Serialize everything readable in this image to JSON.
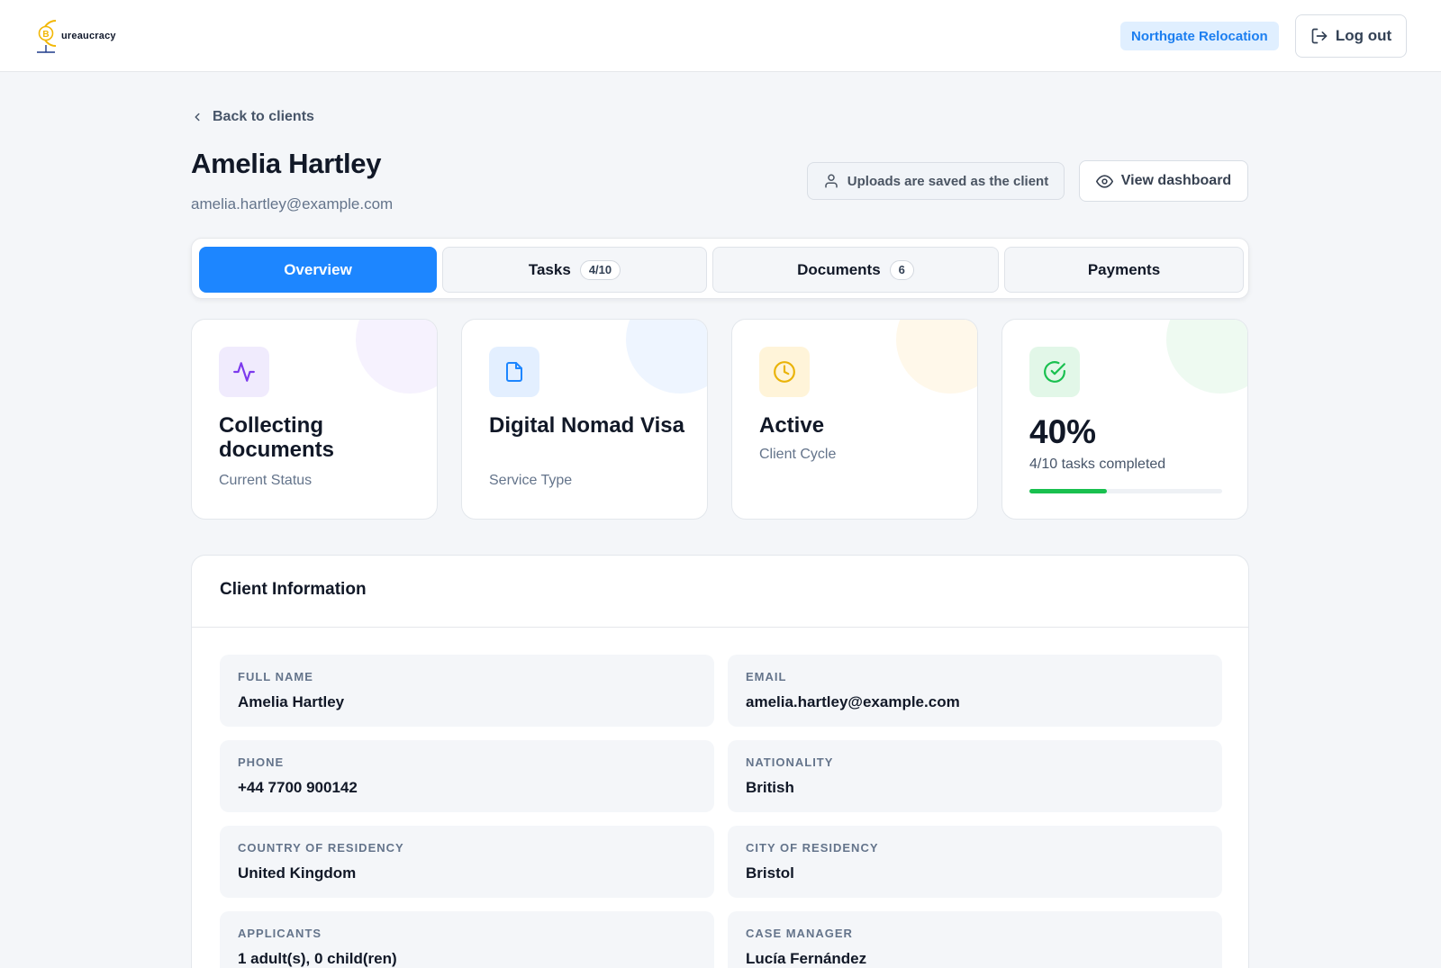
{
  "header": {
    "logo_text": "ureaucracy",
    "logo_letter": "B",
    "organization": "Northgate Relocation",
    "logout_label": "Log out"
  },
  "back": {
    "label": "Back to clients"
  },
  "client": {
    "name": "Amelia Hartley",
    "email": "amelia.hartley@example.com",
    "uploads_note": "Uploads are saved as the client",
    "view_dashboard_label": "View dashboard"
  },
  "tabs": [
    {
      "label": "Overview",
      "count": ""
    },
    {
      "label": "Tasks",
      "count": "4/10"
    },
    {
      "label": "Documents",
      "count": "6"
    },
    {
      "label": "Payments",
      "count": ""
    }
  ],
  "stats": [
    {
      "value": "Collecting documents",
      "label": "Current Status",
      "icon": "activity-icon",
      "color": "#7c3aed"
    },
    {
      "value": "Digital Nomad Visa",
      "label": "Service Type",
      "icon": "file-icon",
      "color": "#1d86ff"
    },
    {
      "value": "Active",
      "label": "Client Cycle",
      "icon": "clock-icon",
      "color": "#eab308"
    },
    {
      "value": "40%",
      "label": "4/10 tasks completed",
      "icon": "check-circle-icon",
      "color": "#19c04f",
      "progress": 0.4
    }
  ],
  "info": {
    "title": "Client Information",
    "fields": [
      {
        "label": "FULL NAME",
        "value": "Amelia Hartley"
      },
      {
        "label": "EMAIL",
        "value": "amelia.hartley@example.com"
      },
      {
        "label": "PHONE",
        "value": "+44 7700 900142"
      },
      {
        "label": "NATIONALITY",
        "value": "British"
      },
      {
        "label": "COUNTRY OF RESIDENCY",
        "value": "United Kingdom"
      },
      {
        "label": "CITY OF RESIDENCY",
        "value": "Bristol"
      },
      {
        "label": "APPLICANTS",
        "value": "1 adult(s), 0 child(ren)"
      },
      {
        "label": "CASE MANAGER",
        "value": "Lucía Fernández"
      }
    ]
  }
}
